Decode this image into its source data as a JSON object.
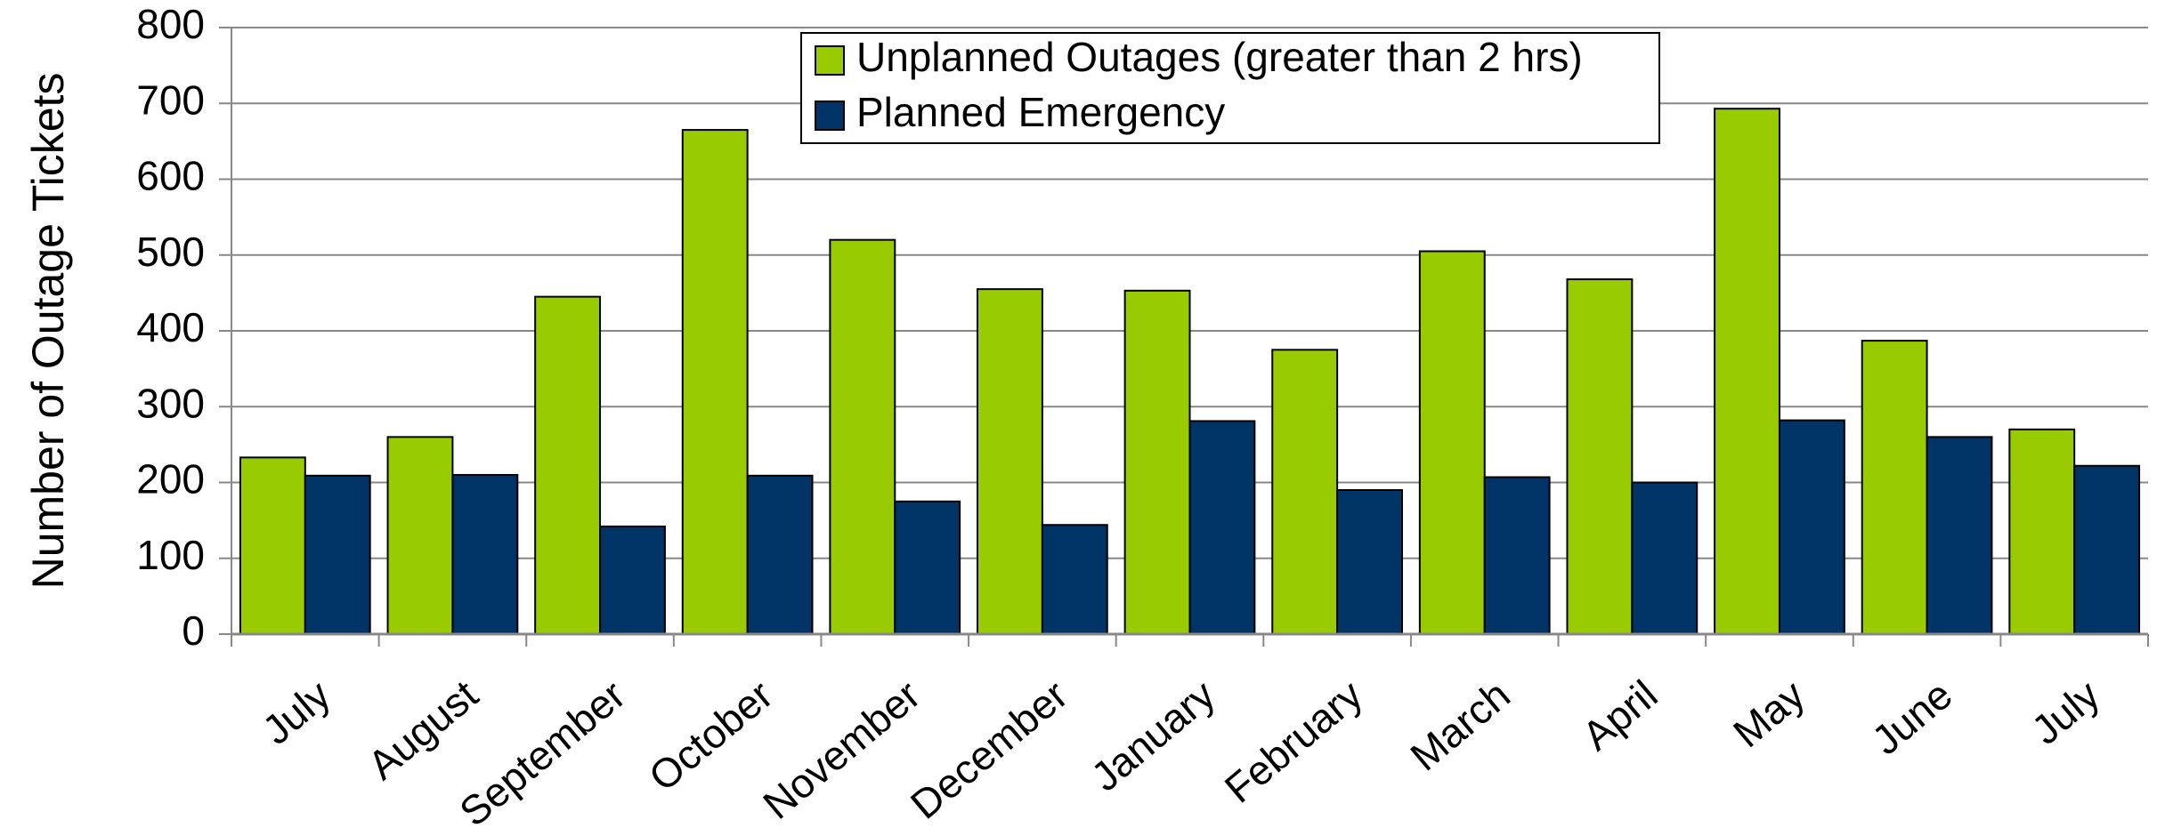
{
  "chart_data": {
    "type": "bar",
    "y_label": "Number of Outage Tickets",
    "categories": [
      "July",
      "August",
      "September",
      "October",
      "November",
      "December",
      "January",
      "February",
      "March",
      "April",
      "May",
      "June",
      "July"
    ],
    "series": [
      {
        "name": "Unplanned Outages (greater than 2 hrs)",
        "color": "#99cc00",
        "values": [
          233,
          260,
          445,
          665,
          520,
          455,
          453,
          375,
          505,
          468,
          693,
          387,
          270
        ]
      },
      {
        "name": "Planned Emergency",
        "color": "#003366",
        "values": [
          209,
          210,
          142,
          209,
          175,
          144,
          281,
          190,
          207,
          200,
          282,
          260,
          222
        ]
      }
    ],
    "ylim": [
      0,
      800
    ],
    "yticks": [
      0,
      100,
      200,
      300,
      400,
      500,
      600,
      700,
      800
    ],
    "grid": true,
    "legend": "top"
  }
}
